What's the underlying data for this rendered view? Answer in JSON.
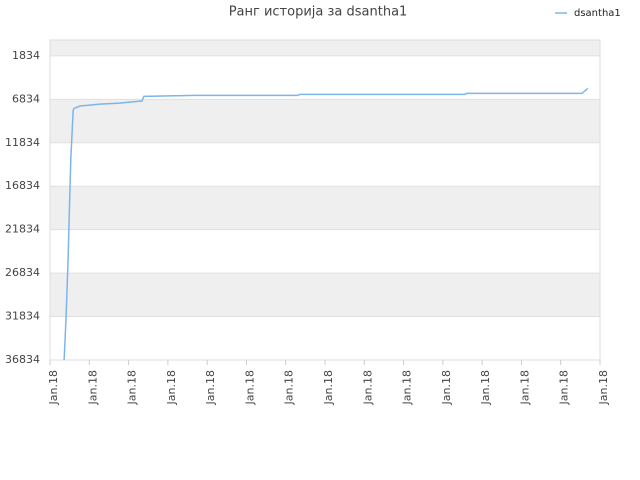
{
  "chart_data": {
    "type": "line",
    "title": "Ранг историја за dsantha1",
    "x": [
      0.36,
      0.41,
      0.46,
      0.48,
      0.53,
      0.59,
      0.61,
      0.76,
      1.02,
      1.27,
      1.78,
      2.29,
      2.34,
      2.39,
      3.69,
      6.31,
      6.36,
      10.56,
      10.61,
      13.54,
      13.69
    ],
    "series": [
      {
        "name": "dsantha1",
        "color": "#7cb5ec",
        "values": [
          36834,
          31834,
          25300,
          21834,
          13650,
          8100,
          7880,
          7600,
          7500,
          7380,
          7260,
          7030,
          7030,
          6490,
          6380,
          6380,
          6260,
          6260,
          6150,
          6150,
          5570
        ]
      }
    ],
    "xlim": [
      0,
      14
    ],
    "xticks": [
      {
        "value": 0,
        "label": "Jan.18"
      },
      {
        "value": 1,
        "label": "Jan.18"
      },
      {
        "value": 2,
        "label": "Jan.18"
      },
      {
        "value": 3,
        "label": "Jan.18"
      },
      {
        "value": 4,
        "label": "Jan.18"
      },
      {
        "value": 5,
        "label": "Jan.18"
      },
      {
        "value": 6,
        "label": "Jan.18"
      },
      {
        "value": 7,
        "label": "Jan.18"
      },
      {
        "value": 8,
        "label": "Jan.18"
      },
      {
        "value": 9,
        "label": "Jan.18"
      },
      {
        "value": 10,
        "label": "Jan.18"
      },
      {
        "value": 11,
        "label": "Jan.18"
      },
      {
        "value": 12,
        "label": "Jan.18"
      },
      {
        "value": 13,
        "label": "Jan.18"
      },
      {
        "value": 14,
        "label": "Jan.18"
      }
    ],
    "ylim": [
      36834,
      0
    ],
    "yticks": [
      1834,
      6834,
      11834,
      16834,
      21834,
      26834,
      31834,
      36834
    ],
    "grid": true,
    "legend": "top-right"
  }
}
